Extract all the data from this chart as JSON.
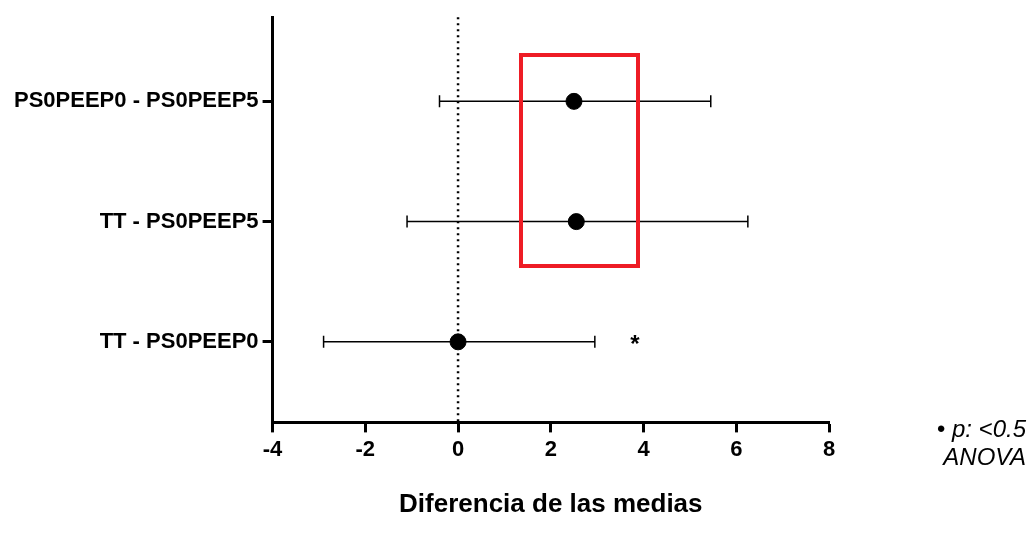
{
  "chart_data": {
    "type": "scatter",
    "orientation": "horizontal",
    "xlabel": "Diferencia de las medias",
    "categories": [
      "PS0PEEP0 - PS0PEEP5",
      "TT - PS0PEEP5",
      "TT - PS0PEEP0"
    ],
    "values": [
      2.5,
      2.55,
      0
    ],
    "errors": [
      [
        -0.4,
        5.45
      ],
      [
        -1.1,
        6.25
      ],
      [
        -2.9,
        2.95
      ]
    ],
    "color": "#000000",
    "marker": "circle",
    "xlim": [
      -4,
      8
    ],
    "xticks": [
      -4,
      -2,
      0,
      2,
      4,
      6,
      8
    ],
    "ref_lines": [
      {
        "axis": "x",
        "value": 0,
        "line_style": "dotted",
        "color": "#000000"
      }
    ],
    "annotations": [
      "*",
      "• p: <0.5 ANOVA"
    ],
    "grid": false,
    "legend": false
  }
}
